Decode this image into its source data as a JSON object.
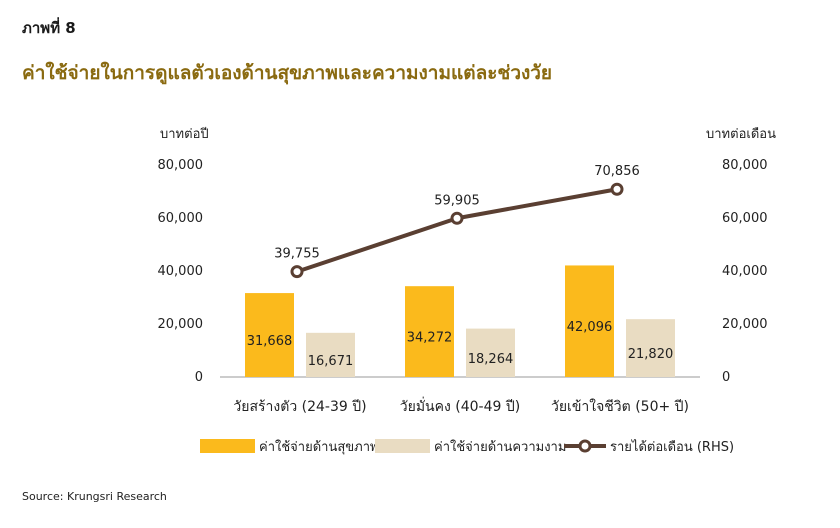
{
  "figure_label": "ภาพที่ 8",
  "title": "ค่าใช้จ่ายในการดูแลตัวเองด้านสุขภาพและความงามแต่ละช่วงวัย",
  "source": "Source: Krungsri Research",
  "colors": {
    "health": "#FBBA1C",
    "beauty": "#E9DCC2",
    "income_line": "#5A3F32"
  },
  "chart_data": {
    "type": "bar",
    "categories": [
      "วัยสร้างตัว (24-39 ปี)",
      "วัยมั่นคง (40-49 ปี)",
      "วัยเข้าใจชีวิต (50+ ปี)"
    ],
    "series": [
      {
        "name": "ค่าใช้จ่ายด้านสุขภาพ",
        "type": "bar",
        "axis": "left",
        "values": [
          31668,
          34272,
          42096
        ],
        "labels": [
          "31,668",
          "34,272",
          "42,096"
        ]
      },
      {
        "name": "ค่าใช้จ่ายด้านความงาม",
        "type": "bar",
        "axis": "left",
        "values": [
          16671,
          18264,
          21820
        ],
        "labels": [
          "16,671",
          "18,264",
          "21,820"
        ]
      },
      {
        "name": "รายได้ต่อเดือน (RHS)",
        "type": "line",
        "axis": "right",
        "values": [
          39755,
          59905,
          70856
        ],
        "labels": [
          "39,755",
          "59,905",
          "70,856"
        ]
      }
    ],
    "ylabel": "บาทต่อปี",
    "y2label": "บาทต่อเดือน",
    "ylim": [
      0,
      80000
    ],
    "y2lim": [
      0,
      80000
    ],
    "yticks": [
      "0",
      "20,000",
      "40,000",
      "60,000",
      "80,000"
    ],
    "y2ticks": [
      "0",
      "20,000",
      "40,000",
      "60,000",
      "80,000"
    ],
    "grid": false,
    "legend_position": "bottom"
  }
}
